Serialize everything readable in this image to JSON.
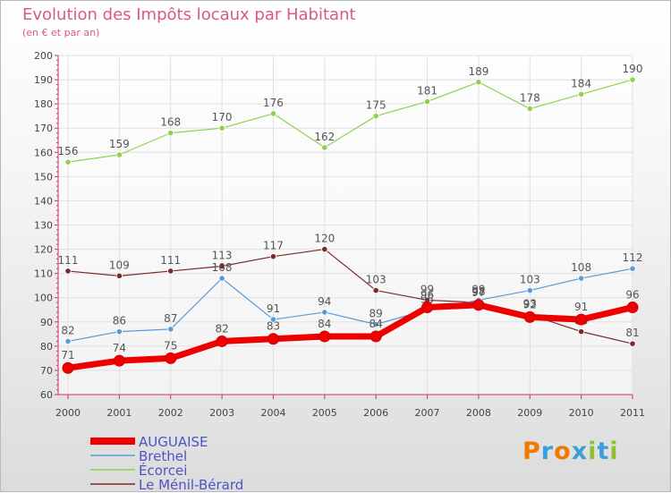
{
  "chart_data": {
    "type": "line",
    "title": "Evolution des Impôts locaux par Habitant",
    "subtitle": "(en € et par an)",
    "xlabel": "",
    "ylabel": "",
    "categories": [
      "2000",
      "2001",
      "2002",
      "2003",
      "2004",
      "2005",
      "2006",
      "2007",
      "2008",
      "2009",
      "2010",
      "2011"
    ],
    "ylim": [
      60,
      200
    ],
    "yticks": [
      60,
      70,
      80,
      90,
      100,
      110,
      120,
      130,
      140,
      150,
      160,
      170,
      180,
      190,
      200
    ],
    "grid": true,
    "legend_position": "bottom-left",
    "series": [
      {
        "name": "AUGUAISE",
        "color": "#ee0000",
        "values": [
          71,
          74,
          75,
          82,
          83,
          84,
          84,
          96,
          97,
          92,
          91,
          96
        ],
        "labels": [
          "71",
          "74",
          "75",
          "82",
          "83",
          "84",
          "84",
          "96",
          "97",
          "92",
          "91",
          "96"
        ]
      },
      {
        "name": "Brethel",
        "color": "#5b9bd5",
        "values": [
          82,
          86,
          87,
          108,
          91,
          94,
          89,
          95,
          99,
          103,
          108,
          112
        ],
        "labels": [
          "82",
          "86",
          "87",
          "108",
          "91",
          "94",
          "89",
          "95",
          "99",
          "103",
          "108",
          "112"
        ]
      },
      {
        "name": "Écorcei",
        "color": "#90d050",
        "values": [
          156,
          159,
          168,
          170,
          176,
          162,
          175,
          181,
          189,
          178,
          184,
          190
        ],
        "labels": [
          "156",
          "159",
          "168",
          "170",
          "176",
          "162",
          "175",
          "181",
          "189",
          "178",
          "184",
          "190"
        ]
      },
      {
        "name": "Le Ménil-Bérard",
        "color": "#7a2a2a",
        "values": [
          111,
          109,
          111,
          113,
          117,
          120,
          103,
          99,
          98,
          93,
          86,
          81
        ],
        "labels": [
          "111",
          "109",
          "111",
          "113",
          "117",
          "120",
          "103",
          "99",
          "98",
          "93",
          "86",
          "81"
        ]
      }
    ]
  },
  "logo": {
    "letters": [
      "P",
      "r",
      "o",
      "x",
      "i",
      "t",
      "i"
    ],
    "colors": [
      "#f07a00",
      "#3aa0d8",
      "#f07a00",
      "#3aa0d8",
      "#90c030",
      "#3aa0d8",
      "#90c030"
    ]
  },
  "axis_color": "#d0306a",
  "legend_text_color": "#4a55c8",
  "label_color": "#555555"
}
